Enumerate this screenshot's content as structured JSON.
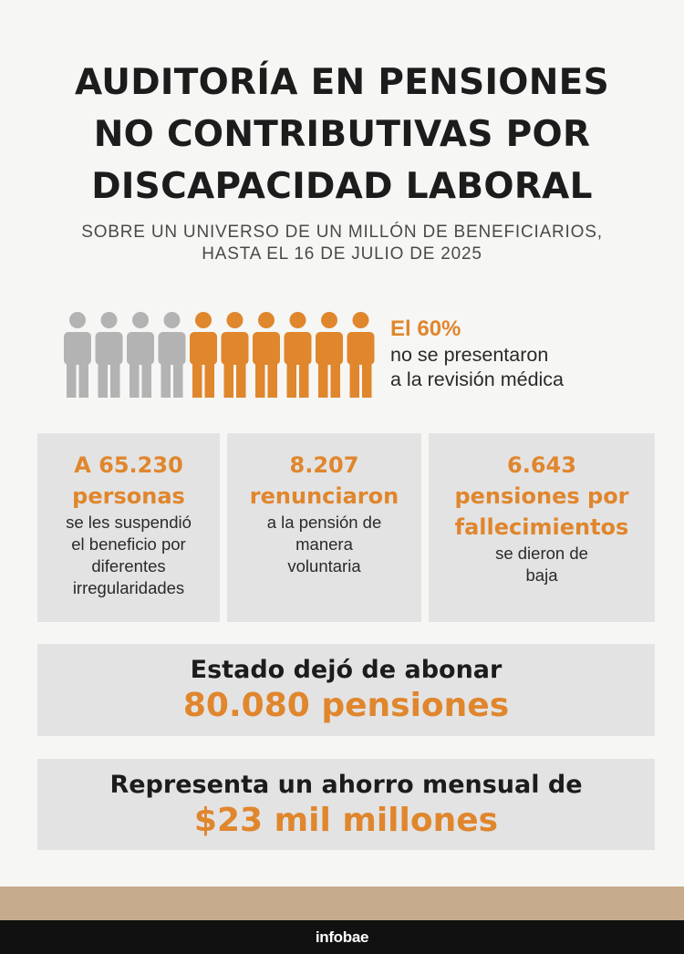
{
  "header": {
    "title_lines": [
      "AUDITORÍA EN PENSIONES",
      "NO CONTRIBUTIVAS POR",
      "DISCAPACIDAD LABORAL"
    ],
    "subtitle_lines": [
      "SOBRE UN UNIVERSO DE UN MILLÓN DE BENEFICIARIOS,",
      "HASTA EL 16 DE JULIO DE 2025"
    ]
  },
  "pictogram": {
    "total_figures": 10,
    "highlighted_figures": 6,
    "share_highlighted": 0.6,
    "colors": {
      "muted": "#b3b3b3",
      "highlight": "#e0862d"
    }
  },
  "stat_60": {
    "headline": "El 60%",
    "text_lines": [
      "no se presentaron",
      "a la revisión médica"
    ]
  },
  "boxes": [
    {
      "highlight_lines": [
        "A 65.230",
        "personas"
      ],
      "text_lines": [
        "se les suspendió",
        "el beneficio por",
        "diferentes",
        "irregularidades"
      ]
    },
    {
      "highlight_lines": [
        "8.207",
        "renunciaron"
      ],
      "text_lines": [
        "a la pensión de",
        "manera",
        "voluntaria"
      ]
    },
    {
      "highlight_lines": [
        "6.643",
        "pensiones por",
        "fallecimientos"
      ],
      "text_lines": [
        "se dieron de",
        "baja"
      ]
    }
  ],
  "summary": {
    "line1": "Estado dejó de abonar",
    "line2": "80.080 pensiones"
  },
  "savings": {
    "line1": "Representa un ahorro mensual de",
    "line2": "$23 mil millones"
  },
  "footer": {
    "brand": "infobae"
  },
  "colors": {
    "accent": "#e0862d",
    "background": "#f6f6f4",
    "box": "#e3e3e3",
    "band": "#c7ab8d",
    "footer": "#111111"
  }
}
